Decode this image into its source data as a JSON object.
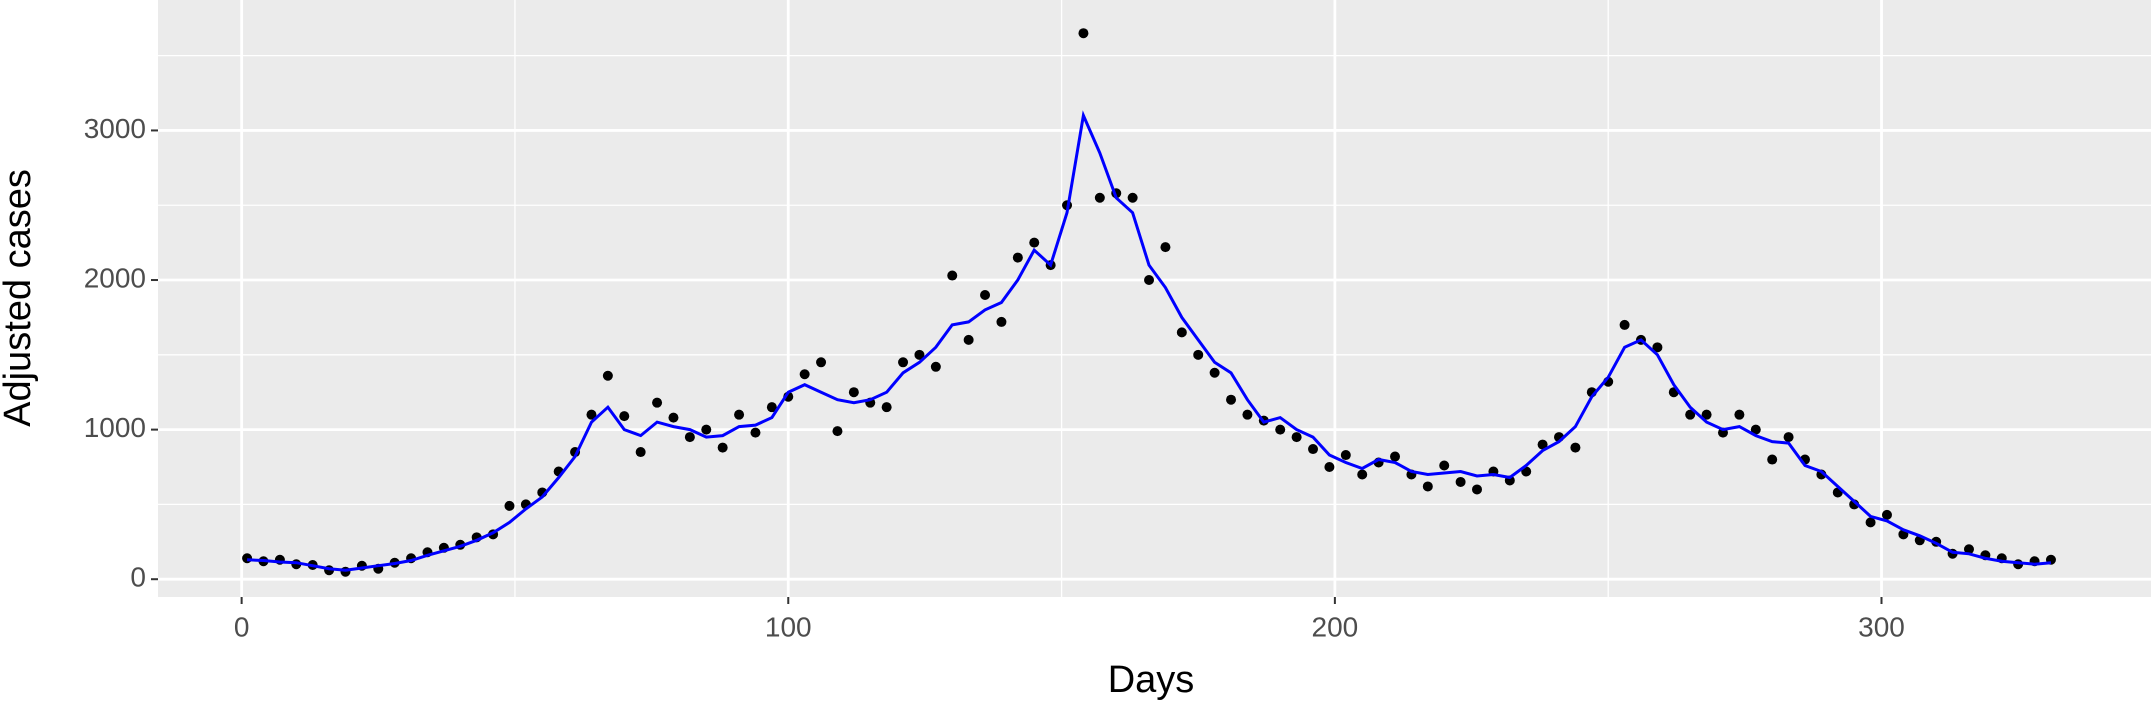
{
  "chart_data": {
    "type": "scatter",
    "xlabel": "Days",
    "ylabel": "Adjusted cases",
    "x": [
      1,
      4,
      7,
      10,
      13,
      16,
      19,
      22,
      25,
      28,
      31,
      34,
      37,
      40,
      43,
      46,
      49,
      52,
      55,
      58,
      61,
      64,
      67,
      70,
      73,
      76,
      79,
      82,
      85,
      88,
      91,
      94,
      97,
      100,
      103,
      106,
      109,
      112,
      115,
      118,
      121,
      124,
      127,
      130,
      133,
      136,
      139,
      142,
      145,
      148,
      151,
      154,
      157,
      160,
      163,
      166,
      169,
      172,
      175,
      178,
      181,
      184,
      187,
      190,
      193,
      196,
      199,
      202,
      205,
      208,
      211,
      214,
      217,
      220,
      223,
      226,
      229,
      232,
      235,
      238,
      241,
      244,
      247,
      250,
      253,
      256,
      259,
      262,
      265,
      268,
      271,
      274,
      277,
      280,
      283,
      286,
      289,
      292,
      295,
      298,
      301,
      304,
      307,
      310,
      313,
      316,
      319,
      322,
      325,
      328,
      331
    ],
    "series": [
      {
        "type": "scatter",
        "color": "#000000",
        "values": [
          140,
          120,
          130,
          100,
          95,
          60,
          50,
          90,
          70,
          110,
          140,
          180,
          210,
          230,
          280,
          300,
          490,
          500,
          580,
          720,
          850,
          1100,
          1360,
          1090,
          850,
          1180,
          1080,
          950,
          1000,
          880,
          1100,
          980,
          1150,
          1220,
          1370,
          1450,
          990,
          1250,
          1180,
          1150,
          1450,
          1500,
          1420,
          2030,
          1600,
          1900,
          1720,
          2150,
          2250,
          2100,
          2500,
          3650,
          2550,
          2580,
          2550,
          2000,
          2220,
          1650,
          1500,
          1380,
          1200,
          1100,
          1060,
          1000,
          950,
          870,
          750,
          830,
          700,
          780,
          820,
          700,
          620,
          760,
          650,
          600,
          720,
          660,
          720,
          900,
          950,
          880,
          1250,
          1320,
          1700,
          1600,
          1550,
          1250,
          1100,
          1100,
          980,
          1100,
          1000,
          800,
          950,
          800,
          700,
          580,
          500,
          380,
          430,
          300,
          260,
          250,
          170,
          200,
          160,
          140,
          100,
          120,
          130
        ]
      },
      {
        "type": "line",
        "color": "#0000ff",
        "values": [
          130,
          125,
          115,
          110,
          90,
          70,
          60,
          75,
          90,
          105,
          125,
          160,
          190,
          220,
          260,
          310,
          380,
          470,
          550,
          680,
          820,
          1050,
          1150,
          1000,
          960,
          1050,
          1020,
          1000,
          950,
          960,
          1020,
          1030,
          1080,
          1250,
          1300,
          1250,
          1200,
          1180,
          1200,
          1250,
          1380,
          1450,
          1550,
          1700,
          1720,
          1800,
          1850,
          2000,
          2200,
          2100,
          2450,
          3100,
          2850,
          2550,
          2450,
          2100,
          1950,
          1750,
          1600,
          1450,
          1380,
          1200,
          1050,
          1080,
          1000,
          950,
          830,
          780,
          740,
          800,
          780,
          720,
          700,
          710,
          720,
          690,
          700,
          680,
          760,
          860,
          920,
          1020,
          1220,
          1350,
          1550,
          1600,
          1500,
          1300,
          1150,
          1050,
          1000,
          1020,
          960,
          920,
          910,
          760,
          720,
          620,
          520,
          420,
          390,
          330,
          290,
          240,
          180,
          170,
          140,
          120,
          110,
          100,
          110
        ]
      }
    ],
    "xlim": [
      -15.3,
      349.3
    ],
    "ylim": [
      -119,
      3872
    ],
    "xticks": [
      0,
      100,
      200,
      300
    ],
    "yticks": [
      0,
      1000,
      2000,
      3000
    ],
    "x_minor_grid": [
      50,
      150,
      250
    ],
    "y_minor_grid": [
      500,
      1500,
      2500,
      3500
    ],
    "grid": true,
    "background": "#ebebeb"
  }
}
